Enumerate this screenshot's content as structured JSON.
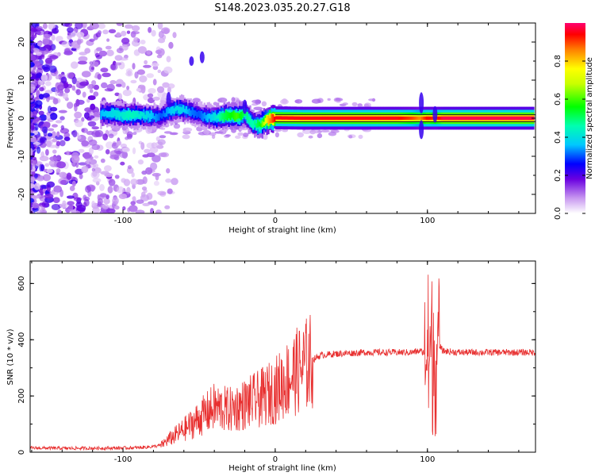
{
  "title": "S148.2023.035.20.27.G18",
  "chart_data": [
    {
      "type": "heatmap",
      "xlabel": "Height of straight line (km)",
      "ylabel": "Frequency (Hz)",
      "xlim": [
        -161,
        171
      ],
      "ylim": [
        -25,
        25
      ],
      "x_ticks": [
        -100,
        0,
        100
      ],
      "y_ticks": [
        -20,
        -10,
        0,
        10,
        20
      ],
      "colorbar": {
        "label": "Normalized spectral amplitude",
        "range": [
          0,
          1
        ],
        "ticks": [
          0.0,
          0.2,
          0.4,
          0.6,
          0.8
        ],
        "tick_labels": [
          "0.0",
          "0.2",
          "0.4",
          "0.6",
          "0.8"
        ]
      },
      "ridge": {
        "x": [
          -115,
          -105,
          -95,
          -85,
          -75,
          -70,
          -65,
          -60,
          -55,
          -50,
          -45,
          -40,
          -35,
          -30,
          -25,
          -20,
          -15,
          -10,
          -5,
          0,
          20,
          40,
          60,
          80,
          90,
          95,
          100,
          105,
          110,
          130,
          150,
          170
        ],
        "y": [
          1.2,
          1.0,
          0.8,
          0.6,
          0.4,
          1.8,
          2.4,
          2.2,
          1.6,
          0.8,
          0.4,
          0.2,
          0.4,
          0.8,
          0.4,
          1.2,
          -1.5,
          -1.8,
          -0.4,
          0.1,
          0.0,
          0.0,
          0.0,
          0.0,
          0.0,
          0.0,
          0.0,
          0.0,
          0.0,
          0.0,
          0.0,
          0.0
        ],
        "amplitude": [
          0.35,
          0.4,
          0.45,
          0.4,
          0.3,
          0.35,
          0.4,
          0.38,
          0.32,
          0.3,
          0.35,
          0.4,
          0.5,
          0.55,
          0.6,
          0.5,
          0.45,
          0.55,
          0.8,
          0.95,
          0.95,
          0.95,
          0.95,
          0.95,
          0.9,
          0.85,
          0.95,
          0.9,
          0.98,
          0.98,
          0.98,
          0.98
        ]
      }
    },
    {
      "type": "line",
      "xlabel": "Height of straight line (km)",
      "ylabel": "SNR (10 * v/v)",
      "xlim": [
        -161,
        171
      ],
      "ylim": [
        0,
        680
      ],
      "x_ticks": [
        -100,
        0,
        100
      ],
      "y_ticks": [
        0,
        200,
        400,
        600
      ],
      "series": [
        {
          "color": "#e83030",
          "x": [
            -161,
            -140,
            -120,
            -100,
            -90,
            -80,
            -75,
            -70,
            -60,
            -50,
            -40,
            -30,
            -20,
            -10,
            0,
            10,
            20,
            25,
            30,
            40,
            60,
            80,
            90,
            95,
            100,
            102,
            104,
            106,
            108,
            110,
            120,
            140,
            160,
            171
          ],
          "y": [
            15,
            14,
            14,
            15,
            16,
            20,
            25,
            45,
            80,
            120,
            160,
            150,
            170,
            190,
            220,
            270,
            310,
            330,
            345,
            350,
            355,
            355,
            355,
            360,
            350,
            420,
            560,
            600,
            380,
            360,
            355,
            355,
            355,
            355
          ]
        }
      ]
    }
  ]
}
